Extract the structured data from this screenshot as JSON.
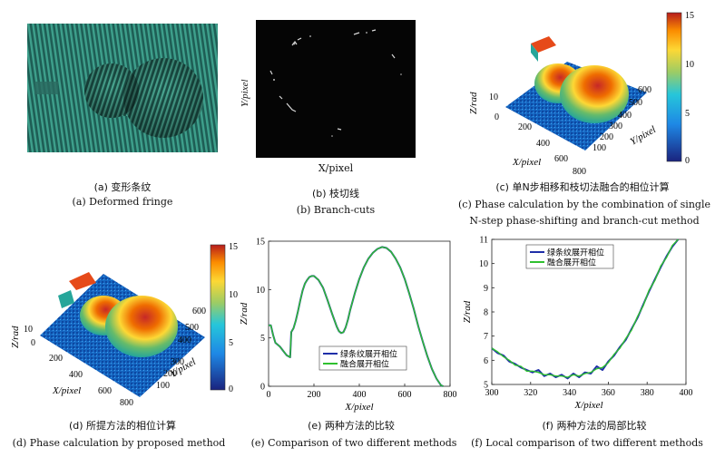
{
  "panels": {
    "a": {
      "caption_zh": "(a) 变形条纹",
      "caption_en": "(a) Deformed fringe"
    },
    "b": {
      "caption_zh": "(b) 枝切线",
      "caption_en": "(b) Branch-cuts",
      "ylabel": "Y/pixel",
      "xlabel": "X/pixel"
    },
    "c": {
      "caption_zh": "(c) 单N步相移和枝切法融合的相位计算",
      "caption_en_1": "(c) Phase calculation by the combination of single",
      "caption_en_2": "N-step phase-shifting and branch-cut method",
      "zlabel": "Z/rad",
      "xlabel": "X/pixel",
      "ylabel": "Y/pixel",
      "x_ticks": [
        "200",
        "400",
        "600",
        "800"
      ],
      "y_ticks": [
        "100",
        "200",
        "300",
        "400",
        "500",
        "600"
      ],
      "z_ticks": [
        "0",
        "10"
      ],
      "colorbar_ticks": [
        "15",
        "10",
        "5",
        "0"
      ]
    },
    "d": {
      "caption_zh": "(d) 所提方法的相位计算",
      "caption_en": "(d) Phase calculation by proposed method",
      "zlabel": "Z/rad",
      "xlabel": "X/pixel",
      "ylabel": "Y/pixel",
      "x_ticks": [
        "200",
        "400",
        "600",
        "800"
      ],
      "y_ticks": [
        "100",
        "200",
        "300",
        "400",
        "500",
        "600"
      ],
      "z_ticks": [
        "0",
        "10"
      ],
      "colorbar_ticks": [
        "15",
        "10",
        "5",
        "0"
      ]
    },
    "e": {
      "caption_zh": "(e) 两种方法的比较",
      "caption_en": "(e) Comparison of  two different methods"
    },
    "f": {
      "caption_zh": "(f) 两种方法的局部比较",
      "caption_en": "(f) Local comparison of two different methods"
    }
  },
  "colors": {
    "series_blue": "#1f2fa8",
    "series_green": "#2fc02f"
  },
  "chart_data": [
    {
      "type": "line",
      "id": "e",
      "xlabel": "X/pixel",
      "ylabel": "Z/rad",
      "xlim": [
        0,
        800
      ],
      "ylim": [
        0,
        15
      ],
      "x_ticks": [
        0,
        200,
        400,
        600,
        800
      ],
      "y_ticks": [
        0,
        5,
        10,
        15
      ],
      "legend_position": "bottom-center",
      "series": [
        {
          "name": "绿条纹展开相位",
          "color": "#1f2fa8",
          "x": [
            0,
            10,
            20,
            30,
            40,
            50,
            60,
            70,
            80,
            95,
            100,
            110,
            120,
            130,
            140,
            150,
            160,
            170,
            180,
            190,
            200,
            220,
            240,
            260,
            280,
            300,
            310,
            320,
            330,
            340,
            350,
            360,
            380,
            400,
            420,
            440,
            460,
            480,
            500,
            520,
            540,
            560,
            580,
            600,
            620,
            640,
            660,
            680,
            700,
            720,
            740,
            760,
            770
          ],
          "y": [
            6.3,
            6.3,
            5.3,
            4.5,
            4.3,
            4.1,
            3.8,
            3.5,
            3.2,
            3.0,
            5.6,
            6.0,
            6.8,
            7.8,
            8.9,
            9.9,
            10.6,
            11.0,
            11.3,
            11.4,
            11.4,
            11.0,
            10.2,
            8.9,
            7.5,
            6.2,
            5.7,
            5.5,
            5.6,
            6.1,
            6.9,
            7.9,
            9.6,
            11.1,
            12.3,
            13.2,
            13.8,
            14.2,
            14.4,
            14.3,
            13.9,
            13.2,
            12.3,
            11.1,
            9.6,
            8.0,
            6.2,
            4.6,
            3.1,
            1.8,
            0.8,
            0.1,
            0.0
          ]
        },
        {
          "name": "融合展开相位",
          "color": "#2fc02f",
          "x": [
            0,
            10,
            20,
            30,
            40,
            50,
            60,
            70,
            80,
            95,
            100,
            110,
            120,
            130,
            140,
            150,
            160,
            170,
            180,
            190,
            200,
            220,
            240,
            260,
            280,
            300,
            310,
            320,
            330,
            340,
            350,
            360,
            380,
            400,
            420,
            440,
            460,
            480,
            500,
            520,
            540,
            560,
            580,
            600,
            620,
            640,
            660,
            680,
            700,
            720,
            740,
            760,
            770
          ],
          "y": [
            6.3,
            6.3,
            5.3,
            4.5,
            4.3,
            4.1,
            3.8,
            3.5,
            3.2,
            3.0,
            5.6,
            6.0,
            6.8,
            7.8,
            8.9,
            9.9,
            10.6,
            11.0,
            11.3,
            11.4,
            11.4,
            11.0,
            10.2,
            8.9,
            7.5,
            6.2,
            5.7,
            5.5,
            5.6,
            6.1,
            6.9,
            7.9,
            9.6,
            11.1,
            12.3,
            13.2,
            13.8,
            14.2,
            14.4,
            14.3,
            13.9,
            13.2,
            12.3,
            11.1,
            9.6,
            8.0,
            6.2,
            4.6,
            3.1,
            1.8,
            0.8,
            0.1,
            0.0
          ]
        }
      ]
    },
    {
      "type": "line",
      "id": "f",
      "xlabel": "X/pixel",
      "ylabel": "Z/rad",
      "xlim": [
        300,
        400
      ],
      "ylim": [
        5,
        11
      ],
      "x_ticks": [
        300,
        320,
        340,
        360,
        380,
        400
      ],
      "y_ticks": [
        5,
        6,
        7,
        8,
        9,
        10,
        11
      ],
      "legend_position": "top-left",
      "series": [
        {
          "name": "绿条纹展开相位",
          "color": "#1f2fa8",
          "x": [
            300,
            303,
            306,
            309,
            312,
            315,
            318,
            321,
            324,
            327,
            330,
            333,
            336,
            339,
            342,
            345,
            348,
            351,
            354,
            357,
            360,
            363,
            366,
            369,
            372,
            375,
            378,
            381,
            384,
            387,
            390,
            393,
            396
          ],
          "y": [
            6.5,
            6.3,
            6.2,
            5.95,
            5.85,
            5.7,
            5.6,
            5.5,
            5.6,
            5.35,
            5.45,
            5.3,
            5.4,
            5.25,
            5.45,
            5.3,
            5.5,
            5.45,
            5.75,
            5.6,
            5.95,
            6.2,
            6.55,
            6.85,
            7.3,
            7.75,
            8.3,
            8.85,
            9.35,
            9.85,
            10.3,
            10.7,
            11.0
          ]
        },
        {
          "name": "融合展开相位",
          "color": "#2fc02f",
          "x": [
            300,
            303,
            306,
            309,
            312,
            315,
            318,
            321,
            324,
            327,
            330,
            333,
            336,
            339,
            342,
            345,
            348,
            351,
            354,
            357,
            360,
            363,
            366,
            369,
            372,
            375,
            378,
            381,
            384,
            387,
            390,
            393,
            396
          ],
          "y": [
            6.5,
            6.35,
            6.15,
            6.0,
            5.8,
            5.75,
            5.55,
            5.55,
            5.5,
            5.4,
            5.4,
            5.35,
            5.35,
            5.3,
            5.4,
            5.35,
            5.45,
            5.5,
            5.65,
            5.7,
            5.9,
            6.25,
            6.5,
            6.9,
            7.25,
            7.8,
            8.25,
            8.9,
            9.3,
            9.9,
            10.25,
            10.75,
            11.0
          ]
        }
      ]
    }
  ]
}
